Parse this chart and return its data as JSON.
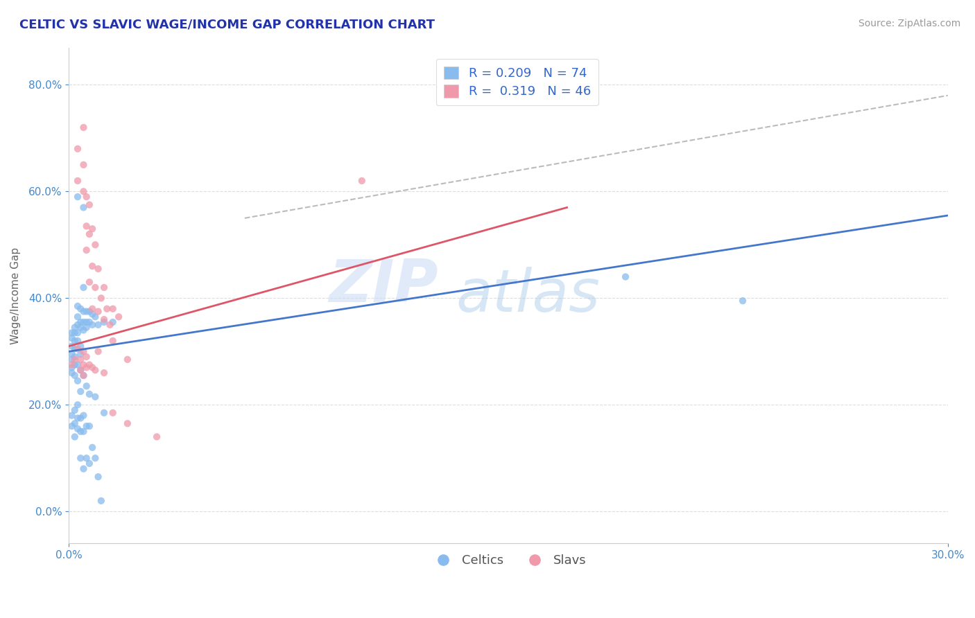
{
  "title": "CELTIC VS SLAVIC WAGE/INCOME GAP CORRELATION CHART",
  "source": "Source: ZipAtlas.com",
  "ylabel": "Wage/Income Gap",
  "xlim": [
    0.0,
    0.3
  ],
  "ylim": [
    -0.06,
    0.87
  ],
  "yticks": [
    0.0,
    0.2,
    0.4,
    0.6,
    0.8
  ],
  "xticks": [
    0.0,
    0.3
  ],
  "celtic_color": "#88bbee",
  "slavic_color": "#f099aa",
  "celtic_line_color": "#4477cc",
  "slavic_line_color": "#dd5566",
  "celtic_line": [
    0.0,
    0.3,
    0.3,
    0.555
  ],
  "slavic_line": [
    0.0,
    0.31,
    0.17,
    0.57
  ],
  "dash_line": [
    0.06,
    0.55,
    0.3,
    0.78
  ],
  "watermark_zip": "ZIP",
  "watermark_atlas": "atlas",
  "celtics_points": [
    [
      0.001,
      0.335
    ],
    [
      0.001,
      0.325
    ],
    [
      0.001,
      0.31
    ],
    [
      0.001,
      0.295
    ],
    [
      0.001,
      0.285
    ],
    [
      0.001,
      0.27
    ],
    [
      0.001,
      0.26
    ],
    [
      0.002,
      0.345
    ],
    [
      0.002,
      0.335
    ],
    [
      0.002,
      0.32
    ],
    [
      0.002,
      0.305
    ],
    [
      0.002,
      0.29
    ],
    [
      0.002,
      0.275
    ],
    [
      0.003,
      0.59
    ],
    [
      0.003,
      0.385
    ],
    [
      0.003,
      0.365
    ],
    [
      0.003,
      0.35
    ],
    [
      0.003,
      0.335
    ],
    [
      0.003,
      0.32
    ],
    [
      0.003,
      0.275
    ],
    [
      0.004,
      0.38
    ],
    [
      0.004,
      0.355
    ],
    [
      0.004,
      0.345
    ],
    [
      0.004,
      0.31
    ],
    [
      0.004,
      0.295
    ],
    [
      0.004,
      0.265
    ],
    [
      0.005,
      0.57
    ],
    [
      0.005,
      0.42
    ],
    [
      0.005,
      0.375
    ],
    [
      0.005,
      0.355
    ],
    [
      0.005,
      0.34
    ],
    [
      0.006,
      0.375
    ],
    [
      0.006,
      0.355
    ],
    [
      0.006,
      0.345
    ],
    [
      0.007,
      0.375
    ],
    [
      0.007,
      0.355
    ],
    [
      0.008,
      0.37
    ],
    [
      0.008,
      0.35
    ],
    [
      0.009,
      0.365
    ],
    [
      0.01,
      0.35
    ],
    [
      0.012,
      0.355
    ],
    [
      0.015,
      0.355
    ],
    [
      0.001,
      0.18
    ],
    [
      0.001,
      0.16
    ],
    [
      0.002,
      0.19
    ],
    [
      0.002,
      0.165
    ],
    [
      0.002,
      0.14
    ],
    [
      0.003,
      0.2
    ],
    [
      0.003,
      0.175
    ],
    [
      0.003,
      0.155
    ],
    [
      0.004,
      0.175
    ],
    [
      0.004,
      0.15
    ],
    [
      0.004,
      0.1
    ],
    [
      0.005,
      0.18
    ],
    [
      0.005,
      0.15
    ],
    [
      0.005,
      0.08
    ],
    [
      0.006,
      0.16
    ],
    [
      0.006,
      0.1
    ],
    [
      0.007,
      0.16
    ],
    [
      0.007,
      0.09
    ],
    [
      0.008,
      0.12
    ],
    [
      0.009,
      0.1
    ],
    [
      0.01,
      0.065
    ],
    [
      0.011,
      0.02
    ],
    [
      0.002,
      0.255
    ],
    [
      0.003,
      0.245
    ],
    [
      0.004,
      0.225
    ],
    [
      0.005,
      0.255
    ],
    [
      0.006,
      0.235
    ],
    [
      0.007,
      0.22
    ],
    [
      0.009,
      0.215
    ],
    [
      0.012,
      0.185
    ],
    [
      0.19,
      0.44
    ],
    [
      0.23,
      0.395
    ]
  ],
  "slavs_points": [
    [
      0.003,
      0.68
    ],
    [
      0.003,
      0.62
    ],
    [
      0.005,
      0.72
    ],
    [
      0.005,
      0.65
    ],
    [
      0.005,
      0.6
    ],
    [
      0.006,
      0.59
    ],
    [
      0.006,
      0.535
    ],
    [
      0.006,
      0.49
    ],
    [
      0.007,
      0.575
    ],
    [
      0.007,
      0.52
    ],
    [
      0.007,
      0.43
    ],
    [
      0.008,
      0.53
    ],
    [
      0.008,
      0.46
    ],
    [
      0.008,
      0.38
    ],
    [
      0.009,
      0.5
    ],
    [
      0.009,
      0.42
    ],
    [
      0.01,
      0.455
    ],
    [
      0.01,
      0.375
    ],
    [
      0.011,
      0.4
    ],
    [
      0.012,
      0.42
    ],
    [
      0.012,
      0.36
    ],
    [
      0.013,
      0.38
    ],
    [
      0.014,
      0.35
    ],
    [
      0.015,
      0.38
    ],
    [
      0.015,
      0.32
    ],
    [
      0.017,
      0.365
    ],
    [
      0.001,
      0.275
    ],
    [
      0.002,
      0.285
    ],
    [
      0.003,
      0.305
    ],
    [
      0.004,
      0.285
    ],
    [
      0.004,
      0.265
    ],
    [
      0.005,
      0.3
    ],
    [
      0.005,
      0.275
    ],
    [
      0.005,
      0.255
    ],
    [
      0.006,
      0.29
    ],
    [
      0.006,
      0.27
    ],
    [
      0.007,
      0.275
    ],
    [
      0.008,
      0.27
    ],
    [
      0.009,
      0.265
    ],
    [
      0.01,
      0.3
    ],
    [
      0.012,
      0.26
    ],
    [
      0.015,
      0.185
    ],
    [
      0.02,
      0.165
    ],
    [
      0.03,
      0.14
    ],
    [
      0.1,
      0.62
    ],
    [
      0.02,
      0.285
    ]
  ]
}
